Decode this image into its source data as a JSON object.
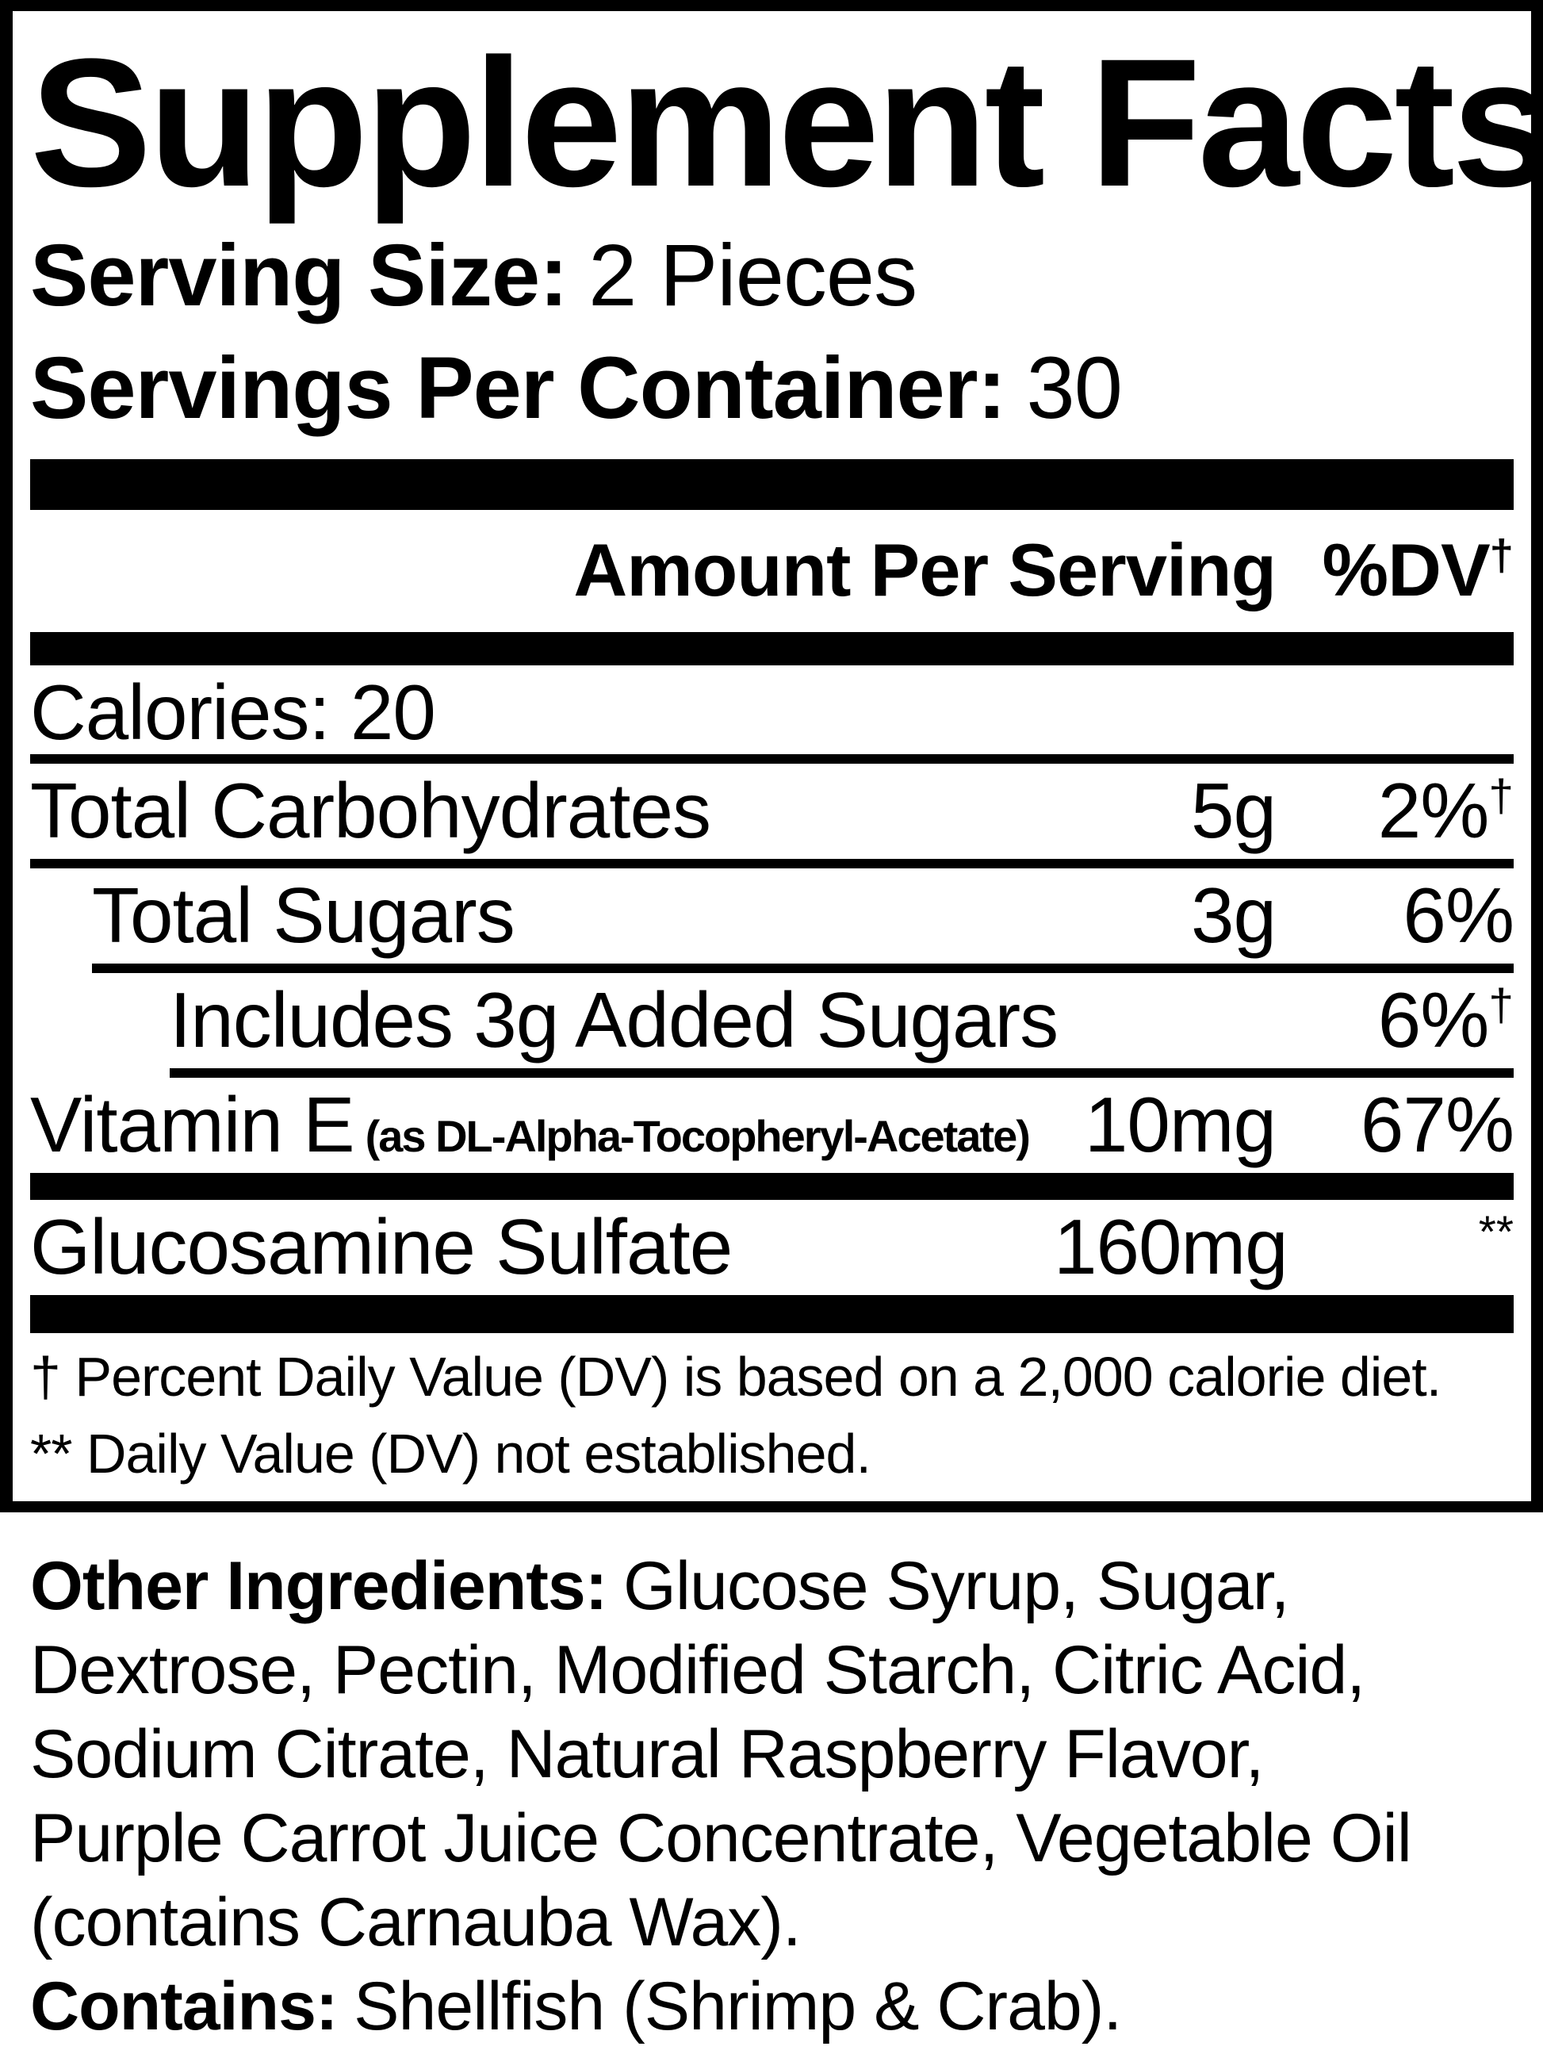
{
  "colors": {
    "ink": "#000000",
    "background": "#ffffff"
  },
  "supplement_facts": {
    "title": "Supplement Facts",
    "serving_size": {
      "label": "Serving Size:",
      "value": "2 Pieces"
    },
    "servings_per_container": {
      "label": "Servings Per Container:",
      "value": "30"
    },
    "columns": {
      "amount_header": "Amount Per Serving",
      "dv_header": "%DV",
      "dv_header_sup": "†"
    },
    "calories": "Calories: 20",
    "rows": [
      {
        "name": "Total Carbohydrates",
        "amount": "5g",
        "dv": "2%",
        "dv_sup": "†"
      },
      {
        "name": "Total Sugars",
        "amount": "3g",
        "dv": "6%",
        "dv_sup": ""
      },
      {
        "name": "Includes 3g Added Sugars",
        "amount": "",
        "dv": "6%",
        "dv_sup": "†"
      },
      {
        "name": "Vitamin E",
        "name_detail": "(as DL-Alpha-Tocopheryl-Acetate)",
        "amount": "10mg",
        "dv": "67%",
        "dv_sup": ""
      },
      {
        "name": "Glucosamine Sulfate",
        "amount": "160mg",
        "dv": "",
        "dv_sup": "**"
      }
    ],
    "footnotes": {
      "dv_note": "† Percent Daily Value (DV) is based on a 2,000 calorie diet.",
      "not_established_note": "** Daily Value (DV) not established."
    }
  },
  "other_ingredients": {
    "label": "Other Ingredients:",
    "line1_rest": "Glucose Syrup, Sugar,",
    "line2": "Dextrose, Pectin, Modified Starch, Citric Acid,",
    "line3": "Sodium Citrate, Natural Raspberry Flavor,",
    "line4": "Purple Carrot Juice Concentrate, Vegetable Oil",
    "line5": "(contains Carnauba Wax)."
  },
  "contains": {
    "label": "Contains:",
    "value": "Shellfish (Shrimp & Crab)."
  }
}
